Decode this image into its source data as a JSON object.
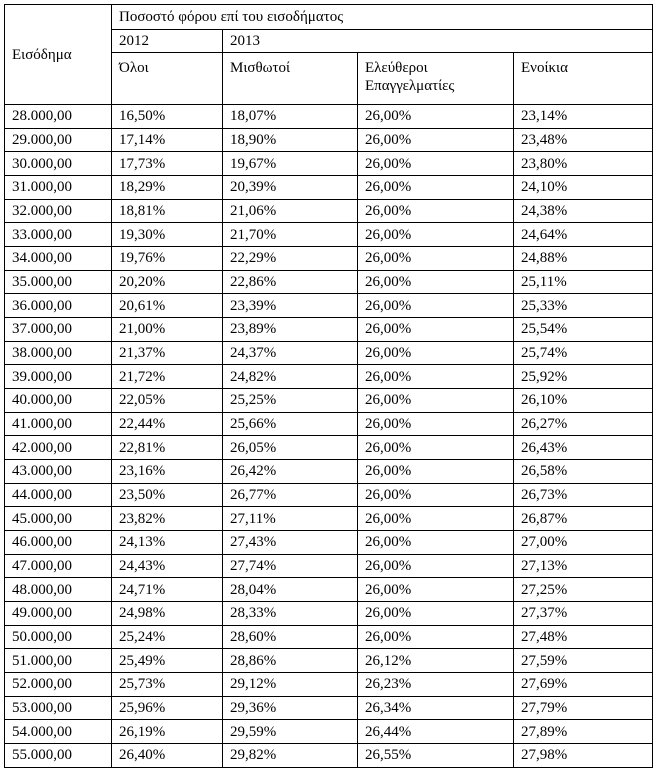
{
  "table": {
    "header": {
      "income": "Εισόδημα",
      "group": "Ποσοστό φόρου επί του εισοδήματος",
      "years": [
        "2012",
        "2013"
      ],
      "columns": [
        "Όλοι",
        "Μισθωτοί",
        "Ελεύθεροι Επαγγελματίες",
        "Ενοίκια"
      ]
    },
    "rows": [
      [
        "28.000,00",
        "16,50%",
        "18,07%",
        "26,00%",
        "23,14%"
      ],
      [
        "29.000,00",
        "17,14%",
        "18,90%",
        "26,00%",
        "23,48%"
      ],
      [
        "30.000,00",
        "17,73%",
        "19,67%",
        "26,00%",
        "23,80%"
      ],
      [
        "31.000,00",
        "18,29%",
        "20,39%",
        "26,00%",
        "24,10%"
      ],
      [
        "32.000,00",
        "18,81%",
        "21,06%",
        "26,00%",
        "24,38%"
      ],
      [
        "33.000,00",
        "19,30%",
        "21,70%",
        "26,00%",
        "24,64%"
      ],
      [
        "34.000,00",
        "19,76%",
        "22,29%",
        "26,00%",
        "24,88%"
      ],
      [
        "35.000,00",
        "20,20%",
        "22,86%",
        "26,00%",
        "25,11%"
      ],
      [
        "36.000,00",
        "20,61%",
        "23,39%",
        "26,00%",
        "25,33%"
      ],
      [
        "37.000,00",
        "21,00%",
        "23,89%",
        "26,00%",
        "25,54%"
      ],
      [
        "38.000,00",
        "21,37%",
        "24,37%",
        "26,00%",
        "25,74%"
      ],
      [
        "39.000,00",
        "21,72%",
        "24,82%",
        "26,00%",
        "25,92%"
      ],
      [
        "40.000,00",
        "22,05%",
        "25,25%",
        "26,00%",
        "26,10%"
      ],
      [
        "41.000,00",
        "22,44%",
        "25,66%",
        "26,00%",
        "26,27%"
      ],
      [
        "42.000,00",
        "22,81%",
        "26,05%",
        "26,00%",
        "26,43%"
      ],
      [
        "43.000,00",
        "23,16%",
        "26,42%",
        "26,00%",
        "26,58%"
      ],
      [
        "44.000,00",
        "23,50%",
        "26,77%",
        "26,00%",
        "26,73%"
      ],
      [
        "45.000,00",
        "23,82%",
        "27,11%",
        "26,00%",
        "26,87%"
      ],
      [
        "46.000,00",
        "24,13%",
        "27,43%",
        "26,00%",
        "27,00%"
      ],
      [
        "47.000,00",
        "24,43%",
        "27,74%",
        "26,00%",
        "27,13%"
      ],
      [
        "48.000,00",
        "24,71%",
        "28,04%",
        "26,00%",
        "27,25%"
      ],
      [
        "49.000,00",
        "24,98%",
        "28,33%",
        "26,00%",
        "27,37%"
      ],
      [
        "50.000,00",
        "25,24%",
        "28,60%",
        "26,00%",
        "27,48%"
      ],
      [
        "51.000,00",
        "25,49%",
        "28,86%",
        "26,12%",
        "27,59%"
      ],
      [
        "52.000,00",
        "25,73%",
        "29,12%",
        "26,23%",
        "27,69%"
      ],
      [
        "53.000,00",
        "25,96%",
        "29,36%",
        "26,34%",
        "27,79%"
      ],
      [
        "54.000,00",
        "26,19%",
        "29,59%",
        "26,44%",
        "27,89%"
      ],
      [
        "55.000,00",
        "26,40%",
        "29,82%",
        "26,55%",
        "27,98%"
      ]
    ]
  }
}
